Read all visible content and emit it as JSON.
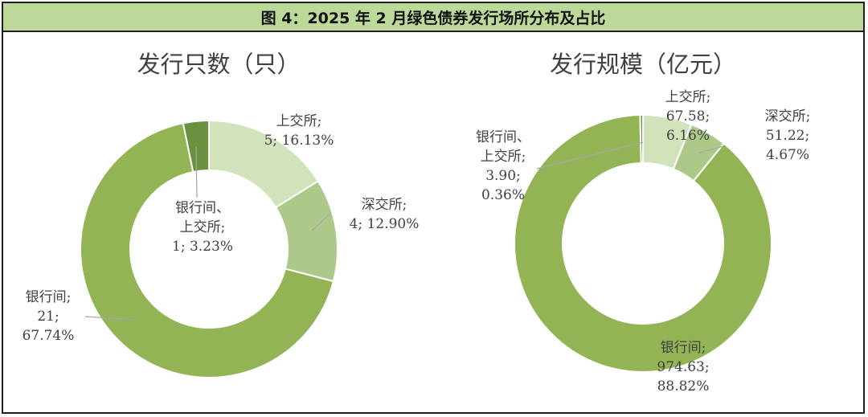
{
  "figure_title": "图 4：2025 年 2 月绿色债券发行场所分布及占比",
  "colors": {
    "header_bg": "#bcd99a",
    "bank": "#93b455",
    "sse": "#d2e3bc",
    "szse": "#adc98a",
    "bank_sse": "#6b9140"
  },
  "chart_data": [
    {
      "type": "pie",
      "donut": true,
      "title": "发行只数（只）",
      "slices": [
        {
          "label": "上交所",
          "value": 5,
          "value_text": "5",
          "percent": "16.13%"
        },
        {
          "label": "深交所",
          "value": 4,
          "value_text": "4",
          "percent": "12.90%"
        },
        {
          "label": "银行间",
          "value": 21,
          "value_text": "21",
          "percent": "67.74%"
        },
        {
          "label": "银行间、上交所",
          "value": 1,
          "value_text": "1",
          "percent": "3.23%"
        }
      ]
    },
    {
      "type": "pie",
      "donut": true,
      "title": "发行规模（亿元）",
      "slices": [
        {
          "label": "上交所",
          "value": 67.58,
          "value_text": "67.58",
          "percent": "6.16%"
        },
        {
          "label": "深交所",
          "value": 51.22,
          "value_text": "51.22",
          "percent": "4.67%"
        },
        {
          "label": "银行间",
          "value": 974.63,
          "value_text": "974.63",
          "percent": "88.82%"
        },
        {
          "label": "银行间、上交所",
          "value": 3.9,
          "value_text": "3.90",
          "percent": "0.36%"
        }
      ]
    }
  ]
}
